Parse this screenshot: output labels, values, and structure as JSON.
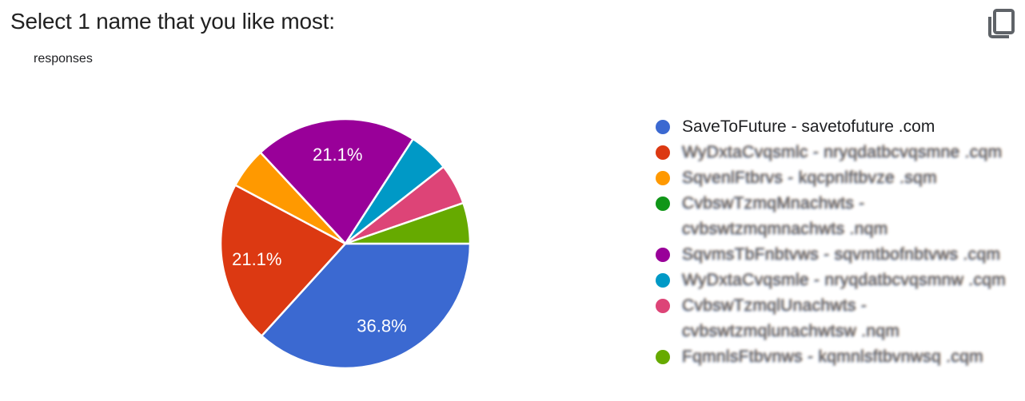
{
  "header": {
    "title": "Select 1 name that you like most:",
    "subtitle": "responses"
  },
  "theme": {
    "background": "#ffffff",
    "title_color": "#212121",
    "text_color": "#202124",
    "icon_color": "#5f6368",
    "slice_label_color": "#ffffff",
    "slice_separator_color": "#ffffff"
  },
  "chart_data": {
    "type": "pie",
    "title": "Select 1 name that you like most:",
    "subtitle": "responses",
    "start_angle": "east",
    "direction": "clockwise",
    "legend_position": "right",
    "label_threshold_pct": 10,
    "slices": [
      {
        "name": "SaveToFuture - savetofuture .com",
        "pct": 36.8,
        "color": "#3B69D1",
        "data_label": "36.8%"
      },
      {
        "name": "redacted-option-2",
        "pct": 21.1,
        "color": "#DC3912",
        "data_label": "21.1%"
      },
      {
        "name": "redacted-option-3",
        "pct": 5.3,
        "color": "#FF9900",
        "data_label": ""
      },
      {
        "name": "redacted-option-4",
        "pct": 0,
        "color": "#109618",
        "data_label": ""
      },
      {
        "name": "redacted-option-5",
        "pct": 21.1,
        "color": "#990099",
        "data_label": "21.1%"
      },
      {
        "name": "redacted-option-6",
        "pct": 5.3,
        "color": "#0099C6",
        "data_label": ""
      },
      {
        "name": "redacted-option-7",
        "pct": 5.3,
        "color": "#DD4477",
        "data_label": ""
      },
      {
        "name": "redacted-option-8",
        "pct": 5.3,
        "color": "#66AA00",
        "data_label": ""
      }
    ]
  },
  "legend": {
    "items": [
      {
        "color": "#3B69D1",
        "redacted": false,
        "lines": [
          "SaveToFuture - savetofuture .com"
        ]
      },
      {
        "color": "#DC3912",
        "redacted": true,
        "lines": [
          "WyDxtaCvqsmlc - nryqdatbcvqsmne .cqm"
        ]
      },
      {
        "color": "#FF9900",
        "redacted": true,
        "lines": [
          "SqvenlFtbrvs - kqcpnlftbvze .sqm"
        ]
      },
      {
        "color": "#109618",
        "redacted": true,
        "lines": [
          "CvbswTzmqMnachwts -",
          "cvbswtzmqmnachwts .nqm"
        ]
      },
      {
        "color": "#990099",
        "redacted": true,
        "lines": [
          "SqvmsTbFnbtvws - sqvmtbofnbtvws .cqm"
        ]
      },
      {
        "color": "#0099C6",
        "redacted": true,
        "lines": [
          "WyDxtaCvqsmle - nryqdatbcvqsmnw .cqm"
        ]
      },
      {
        "color": "#DD4477",
        "redacted": true,
        "lines": [
          "CvbswTzmqlUnachwts -",
          "cvbswtzmqlunachwtsw .nqm"
        ]
      },
      {
        "color": "#66AA00",
        "redacted": true,
        "lines": [
          "FqmnlsFtbvnws - kqmnlsftbvnwsq .cqm"
        ]
      }
    ]
  }
}
